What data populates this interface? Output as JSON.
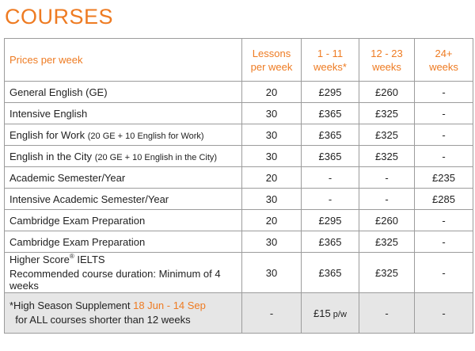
{
  "title": "COURSES",
  "headers": {
    "prices_per_week": "Prices per week",
    "lessons": "Lessons per week",
    "w1": "1 - 11 weeks*",
    "w2": "12 - 23 weeks",
    "w3": "24+ weeks"
  },
  "rows": [
    {
      "name": "General English (GE)",
      "note": "",
      "lessons": "20",
      "w1": "£295",
      "w2": "£260",
      "w3": "-"
    },
    {
      "name": "Intensive English",
      "note": "",
      "lessons": "30",
      "w1": "£365",
      "w2": "£325",
      "w3": "-"
    },
    {
      "name": "English for Work",
      "note": "(20 GE + 10 English for Work)",
      "lessons": "30",
      "w1": "£365",
      "w2": "£325",
      "w3": "-"
    },
    {
      "name": "English in the City",
      "note": "(20 GE + 10 English in the City)",
      "lessons": "30",
      "w1": "£365",
      "w2": "£325",
      "w3": "-"
    },
    {
      "name": "Academic Semester/Year",
      "note": "",
      "lessons": "20",
      "w1": "-",
      "w2": "-",
      "w3": "£235"
    },
    {
      "name": "Intensive Academic Semester/Year",
      "note": "",
      "lessons": "30",
      "w1": "-",
      "w2": "-",
      "w3": "£285"
    },
    {
      "name": "Cambridge Exam Preparation",
      "note": "",
      "lessons": "20",
      "w1": "£295",
      "w2": "£260",
      "w3": "-"
    },
    {
      "name": "Cambridge Exam Preparation",
      "note": "",
      "lessons": "30",
      "w1": "£365",
      "w2": "£325",
      "w3": "-"
    }
  ],
  "ielts": {
    "name": "Higher Score",
    "reg": "®",
    "name_suffix": " IELTS",
    "note": "Recommended course duration: Minimum of 4 weeks",
    "lessons": "30",
    "w1": "£365",
    "w2": "£325",
    "w3": "-"
  },
  "supplement": {
    "label": "*High Season Supplement ",
    "dates": "18 Jun - 14 Sep",
    "line2": "for ALL courses shorter than 12 weeks",
    "lessons": "-",
    "w1": "£15",
    "w1_unit": " p/w",
    "w2": "-",
    "w3": "-"
  },
  "colors": {
    "accent": "#ee7b22",
    "border": "#9c9c9c",
    "footer_bg": "#e6e6e6"
  }
}
